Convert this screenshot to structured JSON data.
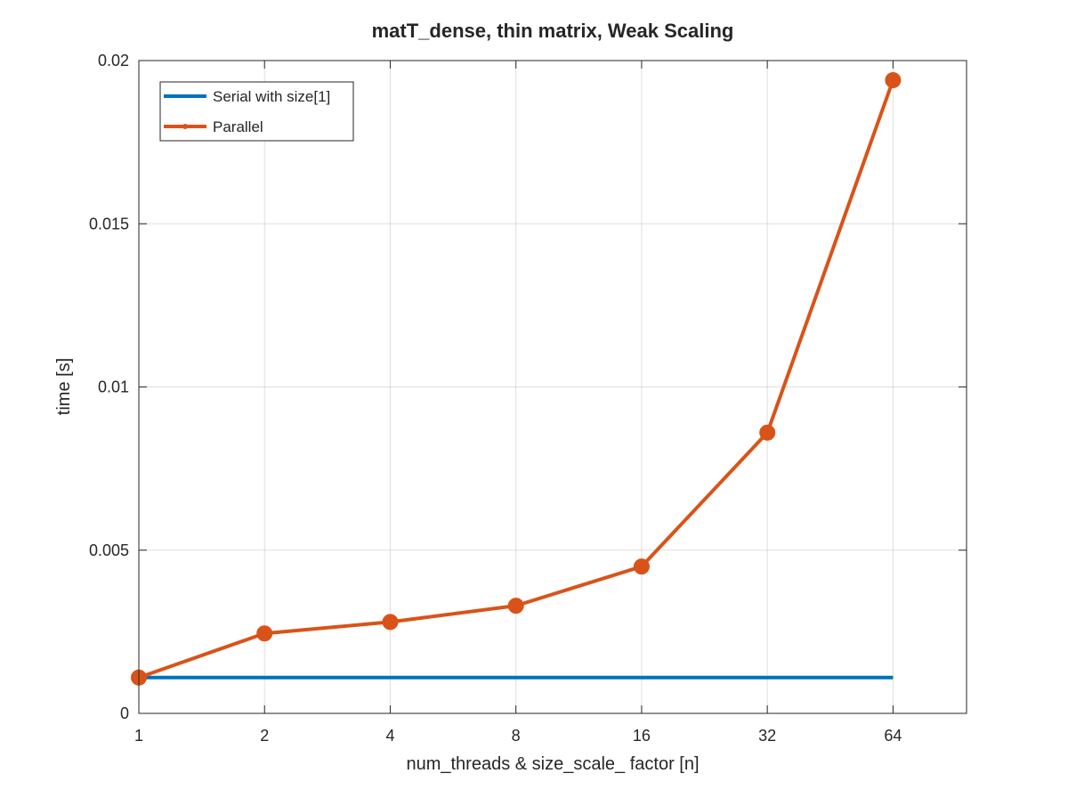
{
  "chart_data": {
    "type": "line",
    "title": "matT_dense, thin matrix, Weak Scaling",
    "xlabel": "num_threads & size_scale_ factor [n]",
    "ylabel": "time [s]",
    "x_scale": "log2",
    "xlim": [
      1,
      96
    ],
    "ylim": [
      0,
      0.02
    ],
    "x_ticks": [
      1,
      2,
      4,
      8,
      16,
      32,
      64
    ],
    "x_tick_labels": [
      "1",
      "2",
      "4",
      "8",
      "16",
      "32",
      "64"
    ],
    "y_ticks": [
      0,
      0.005,
      0.01,
      0.015,
      0.02
    ],
    "y_tick_labels": [
      "0",
      "0.005",
      "0.01",
      "0.015",
      "0.02"
    ],
    "grid": true,
    "legend_position": "top-left",
    "series": [
      {
        "name": "Serial with size[1]",
        "color": "#0072BD",
        "marker": "none",
        "x": [
          1,
          64
        ],
        "y": [
          0.0011,
          0.0011
        ]
      },
      {
        "name": "Parallel",
        "color": "#D95319",
        "marker": "circle",
        "x": [
          1,
          2,
          4,
          8,
          16,
          32,
          64
        ],
        "y": [
          0.0011,
          0.00245,
          0.0028,
          0.0033,
          0.0045,
          0.0086,
          0.0194
        ]
      }
    ]
  }
}
